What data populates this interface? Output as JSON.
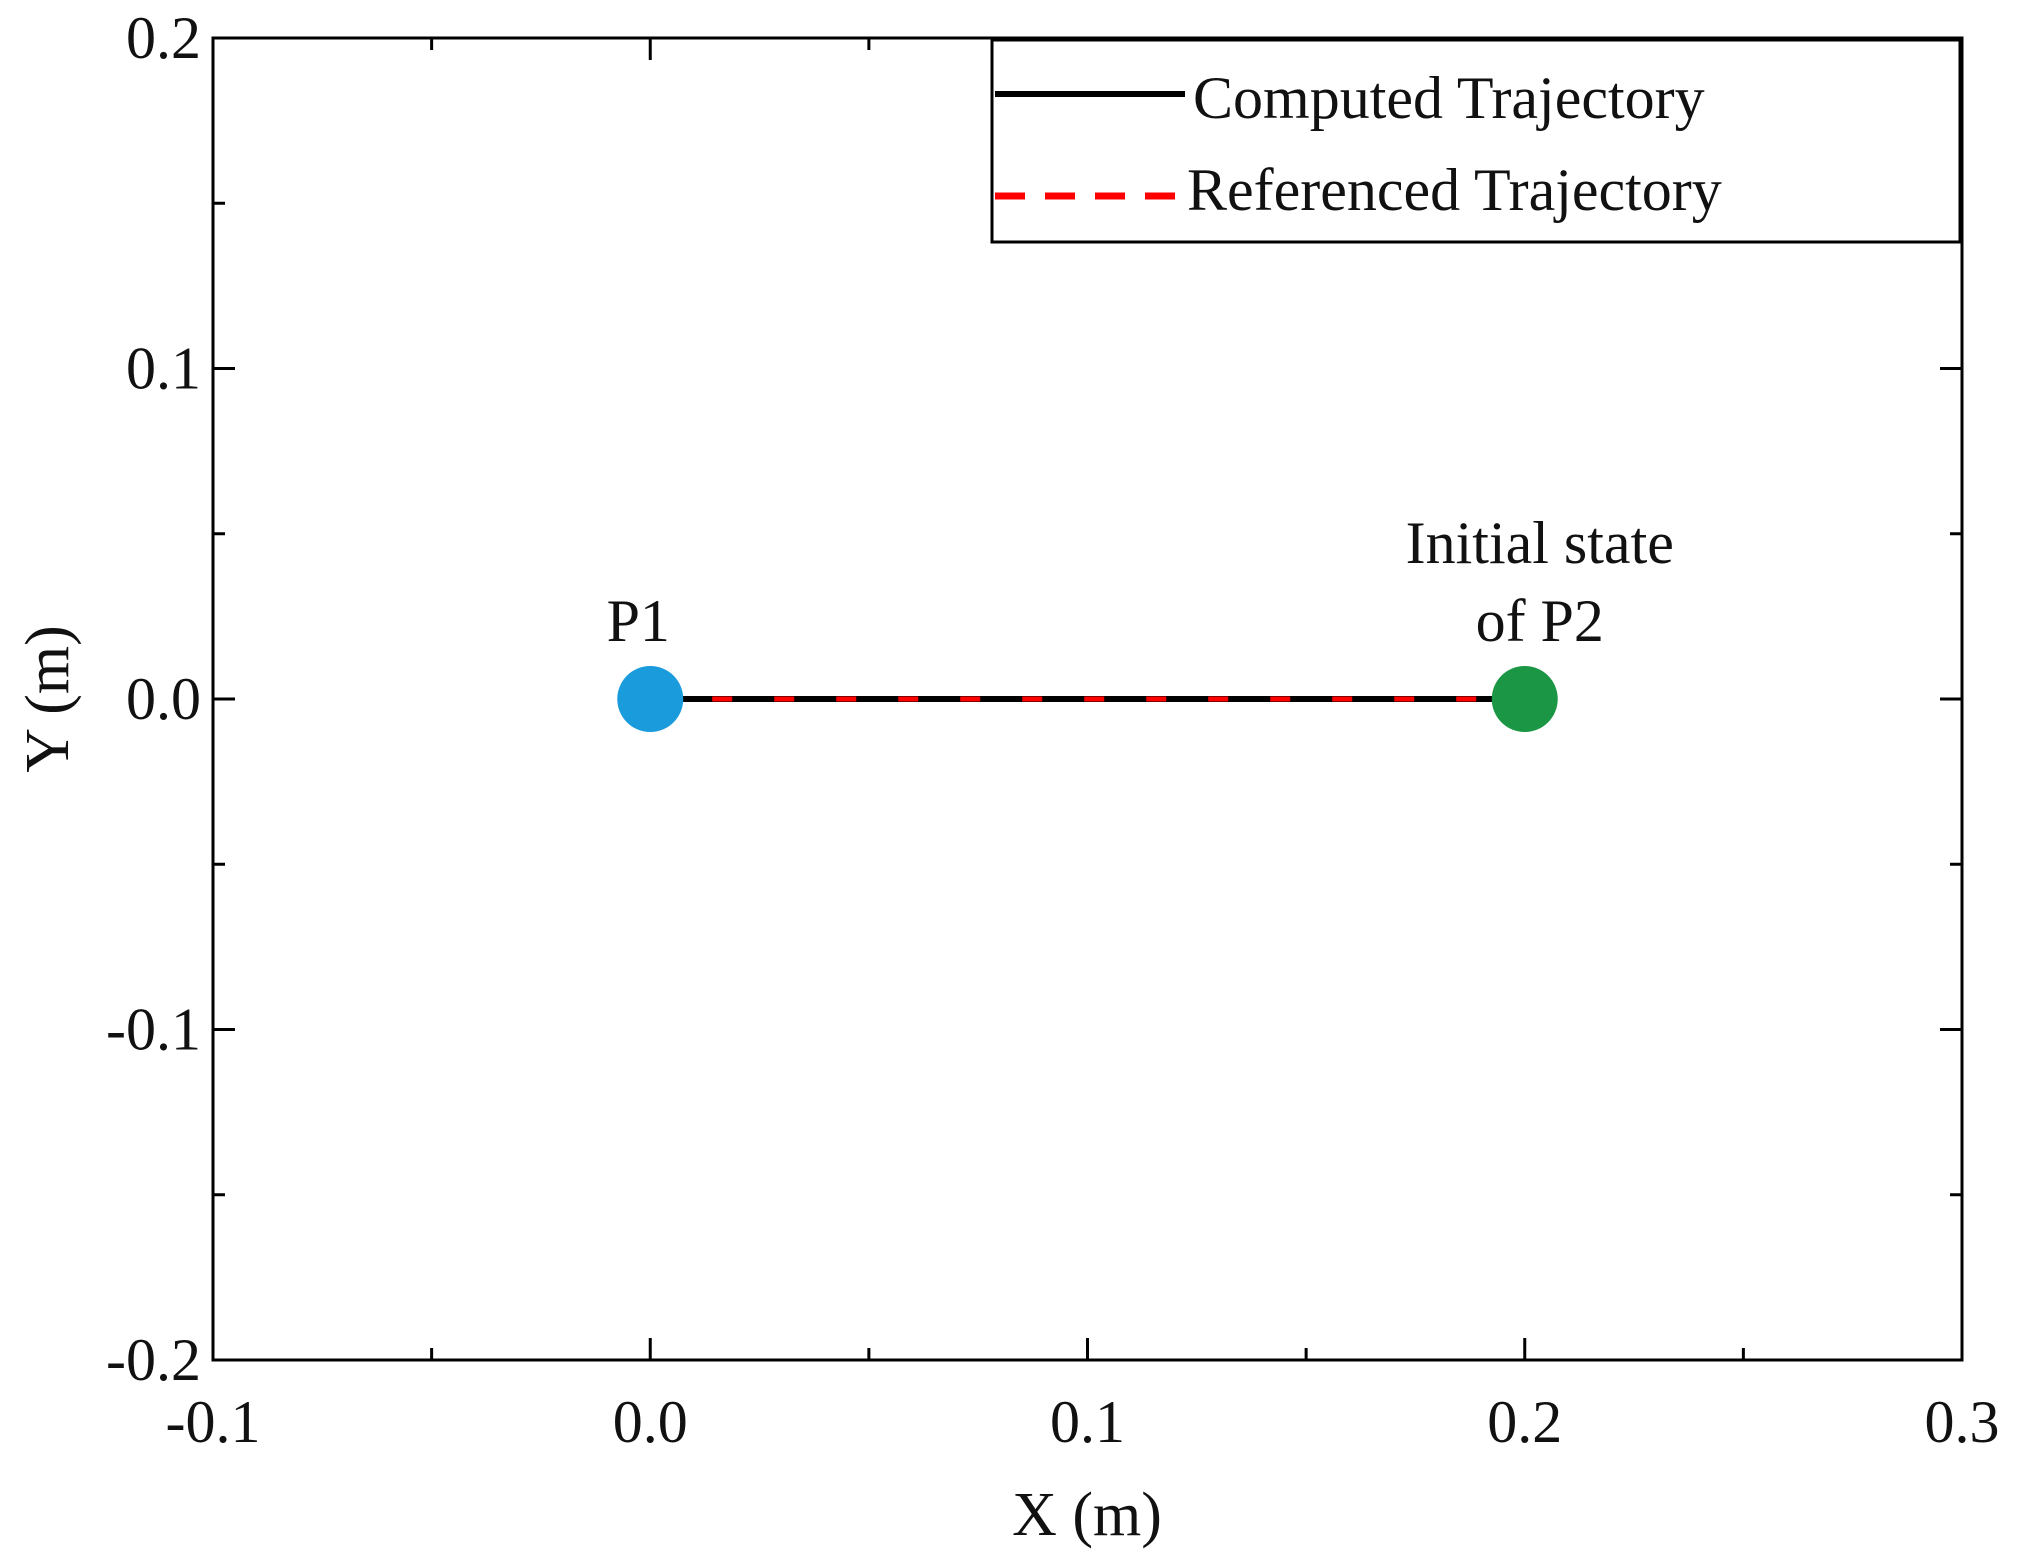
{
  "chart_data": {
    "type": "line",
    "xlabel": "X (m)",
    "ylabel": "Y (m)",
    "xlim": [
      -0.1,
      0.3
    ],
    "ylim": [
      -0.2,
      0.2
    ],
    "xticks": [
      -0.1,
      0.0,
      0.1,
      0.2,
      0.3
    ],
    "xtick_labels": [
      "-0.1",
      "0.0",
      "0.1",
      "0.2",
      "0.3"
    ],
    "yticks": [
      0.2,
      0.1,
      0.0,
      -0.1,
      -0.2
    ],
    "ytick_labels": [
      "0.2",
      "0.1",
      "0.0",
      "-0.1",
      "-0.2"
    ],
    "minor_step": 0.05,
    "grid": false,
    "legend_position": "top-right",
    "series": [
      {
        "name": "Computed Trajectory",
        "style": "solid",
        "color": "#000000",
        "x": [
          0.0,
          0.2
        ],
        "y": [
          0.0,
          0.0
        ]
      },
      {
        "name": "Referenced Trajectory",
        "style": "dashed",
        "color": "#ff0000",
        "x": [
          0.0,
          0.2
        ],
        "y": [
          0.0,
          0.0
        ]
      }
    ],
    "points": [
      {
        "name": "P1",
        "x": 0.0,
        "y": 0.0,
        "color": "#1a9bdc",
        "label_lines": [
          "P1"
        ]
      },
      {
        "name": "P2",
        "x": 0.2,
        "y": 0.0,
        "color": "#1b9645",
        "label_lines": [
          "Initial state",
          "of P2"
        ]
      }
    ]
  }
}
